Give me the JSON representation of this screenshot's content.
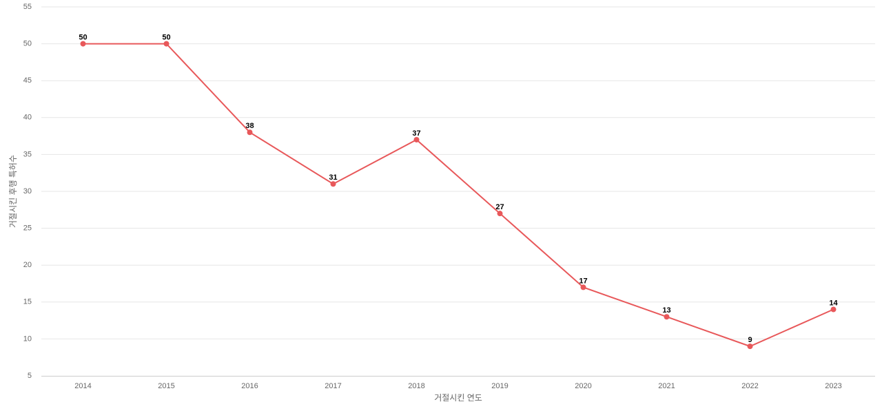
{
  "chart_data": {
    "type": "line",
    "x_label": "거절시킨 연도",
    "y_label": "거절시킨 후행 특허수",
    "categories": [
      "2014",
      "2015",
      "2016",
      "2017",
      "2018",
      "2019",
      "2020",
      "2021",
      "2022",
      "2023"
    ],
    "values": [
      50,
      50,
      38,
      31,
      37,
      27,
      17,
      13,
      9,
      14
    ],
    "color": "#e8585a",
    "ylim": [
      5,
      55
    ],
    "yticks": [
      5,
      10,
      15,
      20,
      25,
      30,
      35,
      40,
      45,
      50,
      55
    ],
    "grid": true
  }
}
